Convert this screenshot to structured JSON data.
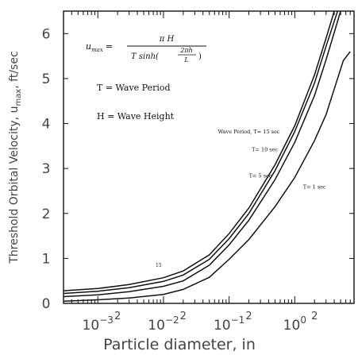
{
  "chart_data": {
    "type": "line",
    "title": "",
    "xlabel": "Particle diameter, in",
    "ylabel": "Threshold Orbital Velocity, u",
    "ylabel_sub": "max",
    "ylabel_unit": ",  ft/sec",
    "x_scale": "log",
    "xlim": [
      0.0003,
      8
    ],
    "ylim": [
      0,
      6.5
    ],
    "x_ticks": [
      {
        "base": "10",
        "exp": "−3",
        "value": 0.001
      },
      {
        "base": "10",
        "exp": "−2",
        "value": 0.01
      },
      {
        "base": "10",
        "exp": "−1",
        "value": 0.1
      },
      {
        "base": "10",
        "exp": "0",
        "value": 1
      }
    ],
    "x_minor_label": "2",
    "y_ticks": [
      "0",
      "1",
      "2",
      "3",
      "4",
      "5",
      "6"
    ],
    "grid": false,
    "formula": {
      "lhs": "u",
      "lhs_sub": "max",
      "eq": "=",
      "numerator": "π H",
      "denominator": "T sinh(",
      "frac_num": "2πh",
      "frac_den": "L",
      "close": ")"
    },
    "legend_lines": [
      "T = Wave Period",
      "H = Wave Height"
    ],
    "series": [
      {
        "name": "Wave Period, T= 15 sec",
        "label_anchor": [
          0.2,
          3.78
        ],
        "x": [
          0.0003,
          0.001,
          0.003,
          0.01,
          0.02,
          0.05,
          0.1,
          0.2,
          0.5,
          1,
          2,
          3,
          4
        ],
        "y": [
          0.28,
          0.33,
          0.42,
          0.57,
          0.72,
          1.08,
          1.55,
          2.12,
          3.08,
          3.95,
          5.08,
          5.9,
          6.5
        ]
      },
      {
        "name": "T= 10 sec",
        "label_anchor": [
          0.35,
          3.38
        ],
        "x": [
          0.0003,
          0.001,
          0.003,
          0.01,
          0.02,
          0.05,
          0.1,
          0.2,
          0.5,
          1,
          2,
          3,
          4.5
        ],
        "y": [
          0.22,
          0.27,
          0.35,
          0.49,
          0.63,
          0.98,
          1.44,
          2.0,
          2.95,
          3.82,
          4.9,
          5.72,
          6.5
        ]
      },
      {
        "name": "T= 5 sec",
        "label_anchor": [
          0.3,
          2.8
        ],
        "x": [
          0.0003,
          0.001,
          0.003,
          0.01,
          0.02,
          0.05,
          0.1,
          0.2,
          0.5,
          1,
          2,
          3,
          5
        ],
        "y": [
          0.15,
          0.19,
          0.26,
          0.38,
          0.5,
          0.85,
          1.3,
          1.85,
          2.75,
          3.58,
          4.62,
          5.42,
          6.5
        ]
      },
      {
        "name": "T= 1 sec",
        "label_anchor": [
          2.0,
          2.55
        ],
        "x": [
          0.0003,
          0.001,
          0.003,
          0.01,
          0.02,
          0.05,
          0.1,
          0.2,
          0.5,
          1,
          2,
          3,
          5.5,
          7
        ],
        "y": [
          0.05,
          0.08,
          0.12,
          0.2,
          0.31,
          0.58,
          0.98,
          1.42,
          2.15,
          2.8,
          3.62,
          4.2,
          5.4,
          5.6
        ]
      }
    ],
    "small_annotation": "15"
  }
}
